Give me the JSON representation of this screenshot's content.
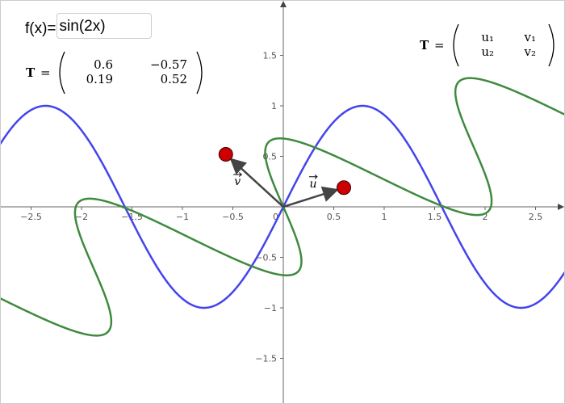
{
  "input": {
    "label": "f(x)=",
    "value": "sin(2x)"
  },
  "matrix": {
    "symbol": "T",
    "relation": "=",
    "rows": [
      [
        0.6,
        {
          "value": -0.57,
          "label": "−0.57"
        }
      ],
      [
        0.19,
        0.52
      ]
    ]
  },
  "symbolic_matrix": {
    "symbol": "T",
    "relation": "=",
    "rows": [
      [
        "u₁",
        "v₁"
      ],
      [
        "u₂",
        "v₂"
      ]
    ]
  },
  "vectors": [
    {
      "name": "u",
      "column": 0
    },
    {
      "name": "v",
      "column": 1
    }
  ],
  "graph": {
    "xlim": [
      -2.808,
      2.792
    ],
    "ylim": [
      -1.952,
      2.048
    ],
    "xticks": [
      {
        "value": -2.5,
        "label": "−2.5"
      },
      {
        "value": -2,
        "label": "−2"
      },
      {
        "value": -1.5,
        "label": "−1.5"
      },
      {
        "value": -1,
        "label": "−1"
      },
      {
        "value": -0.5,
        "label": "−0.5"
      },
      0.5,
      1,
      1.5,
      2,
      2.5
    ],
    "yticks": [
      {
        "value": -1.5,
        "label": "−1.5"
      },
      {
        "value": -1,
        "label": "−1"
      },
      {
        "value": -0.5,
        "label": "−0.5"
      },
      0.5,
      1,
      1.5
    ],
    "origin_label": "0",
    "function_color": "#4444ee",
    "image_color": "#3f8a3f",
    "vector_color": "#444444",
    "point_color": "#cc0000"
  }
}
